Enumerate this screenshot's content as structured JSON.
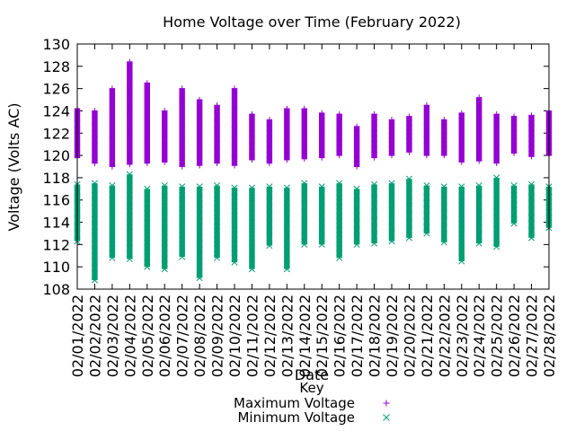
{
  "chart_data": {
    "type": "scatter",
    "title": "Home Voltage over Time (February 2022)",
    "xlabel": "Date",
    "ylabel": "Voltage (Volts AC)",
    "ylim": [
      108,
      130
    ],
    "yticks": [
      108,
      110,
      112,
      114,
      116,
      118,
      120,
      122,
      124,
      126,
      128,
      130
    ],
    "categories": [
      "02/01/2022",
      "02/02/2022",
      "02/03/2022",
      "02/04/2022",
      "02/05/2022",
      "02/06/2022",
      "02/07/2022",
      "02/08/2022",
      "02/09/2022",
      "02/10/2022",
      "02/11/2022",
      "02/12/2022",
      "02/13/2022",
      "02/14/2022",
      "02/15/2022",
      "02/16/2022",
      "02/17/2022",
      "02/18/2022",
      "02/19/2022",
      "02/20/2022",
      "02/21/2022",
      "02/22/2022",
      "02/23/2022",
      "02/24/2022",
      "02/25/2022",
      "02/26/2022",
      "02/27/2022",
      "02/28/2022"
    ],
    "legend_title": "Key",
    "legend_position": "bottom",
    "series": [
      {
        "name": "Maximum Voltage",
        "marker": "+",
        "color": "#9400d3",
        "ranges": [
          [
            119.8,
            124.2
          ],
          [
            119.3,
            124.0
          ],
          [
            119.0,
            126.0
          ],
          [
            119.2,
            128.4
          ],
          [
            119.3,
            126.5
          ],
          [
            119.4,
            124.0
          ],
          [
            119.0,
            126.0
          ],
          [
            119.1,
            125.0
          ],
          [
            119.3,
            124.5
          ],
          [
            119.1,
            126.0
          ],
          [
            119.6,
            123.7
          ],
          [
            119.3,
            123.2
          ],
          [
            119.6,
            124.2
          ],
          [
            119.7,
            124.2
          ],
          [
            119.8,
            123.8
          ],
          [
            120.0,
            123.7
          ],
          [
            119.0,
            122.6
          ],
          [
            119.8,
            123.7
          ],
          [
            120.0,
            123.2
          ],
          [
            120.3,
            123.5
          ],
          [
            120.0,
            124.5
          ],
          [
            120.0,
            123.2
          ],
          [
            119.4,
            123.8
          ],
          [
            119.5,
            125.2
          ],
          [
            119.3,
            123.7
          ],
          [
            120.2,
            123.5
          ],
          [
            119.9,
            123.6
          ],
          [
            120.0,
            124.0
          ]
        ]
      },
      {
        "name": "Minimum Voltage",
        "marker": "x",
        "color": "#009e73",
        "ranges": [
          [
            112.3,
            117.4
          ],
          [
            108.8,
            117.5
          ],
          [
            110.8,
            117.3
          ],
          [
            110.7,
            118.3
          ],
          [
            110.0,
            117.0
          ],
          [
            109.8,
            117.3
          ],
          [
            110.9,
            117.2
          ],
          [
            109.0,
            117.2
          ],
          [
            110.8,
            117.3
          ],
          [
            110.4,
            117.1
          ],
          [
            109.8,
            117.1
          ],
          [
            111.9,
            117.2
          ],
          [
            109.8,
            117.1
          ],
          [
            112.0,
            117.5
          ],
          [
            112.0,
            117.2
          ],
          [
            110.8,
            117.5
          ],
          [
            112.0,
            117.0
          ],
          [
            112.1,
            117.4
          ],
          [
            112.3,
            117.5
          ],
          [
            112.6,
            117.9
          ],
          [
            113.0,
            117.3
          ],
          [
            112.2,
            117.2
          ],
          [
            110.5,
            117.2
          ],
          [
            112.1,
            117.3
          ],
          [
            111.8,
            118.0
          ],
          [
            113.9,
            117.3
          ],
          [
            112.6,
            117.4
          ],
          [
            113.5,
            117.2
          ]
        ]
      }
    ]
  }
}
